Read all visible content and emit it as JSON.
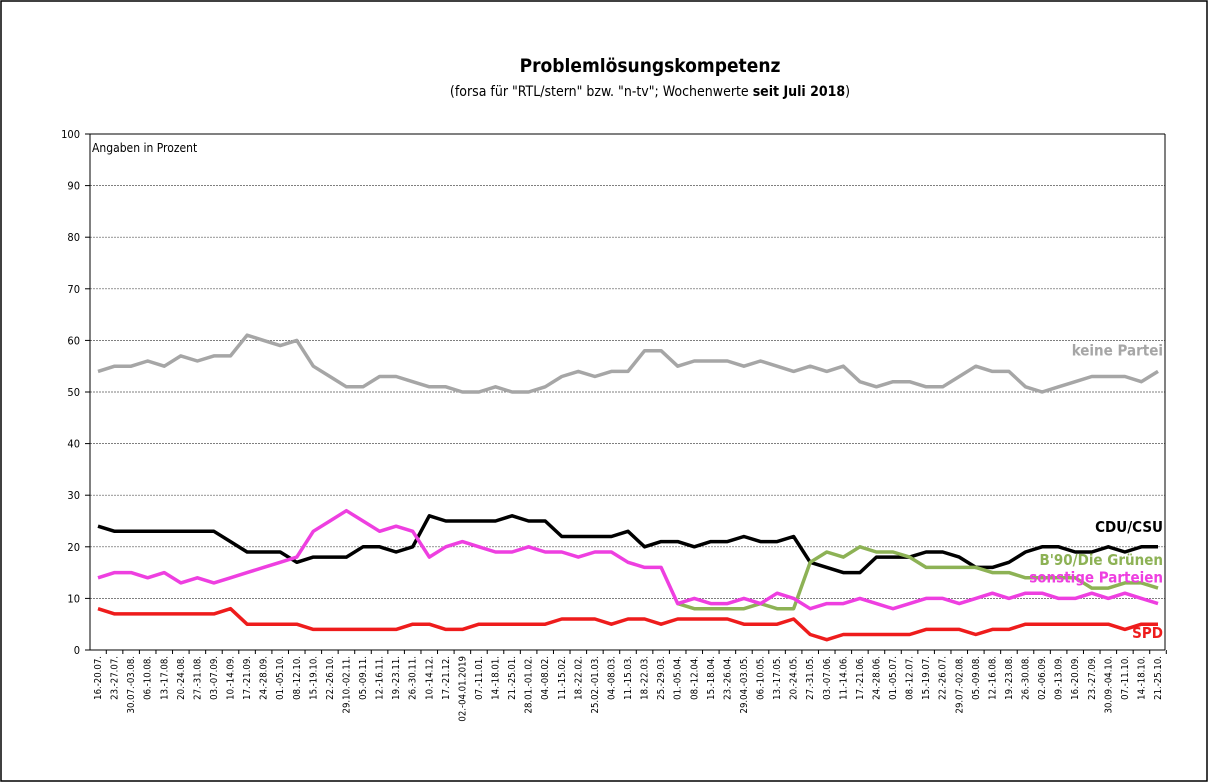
{
  "chart_data": {
    "type": "line",
    "title": "Problemlösungskompetenz",
    "subtitle": [
      "(forsa für \"RTL/stern\" bzw. \"n-tv\"; Wochenwerte ",
      "seit Juli 2018",
      ")"
    ],
    "annotation": "Angaben in Prozent",
    "categories": [
      "16.-20.07.",
      "23.-27.07.",
      "30.07.-03.08.",
      "06.-10.08.",
      "13.-17.08.",
      "20.-24.08.",
      "27.-31.08.",
      "03.-07.09.",
      "10.-14.09.",
      "17.-21.09.",
      "24.-28.09.",
      "01.-05.10.",
      "08.-12.10.",
      "15.-19.10.",
      "22.-26.10.",
      "29.10.-02.11.",
      "05.-09.11.",
      "12.-16.11.",
      "19.-23.11.",
      "26.-30.11.",
      "10.-14.12.",
      "17.-21.12.",
      "02.-04.01.2019",
      "07.-11.01.",
      "14.-18.01.",
      "21.-25.01.",
      "28.01.-01.02.",
      "04.-08.02.",
      "11.-15.02.",
      "18.-22.02.",
      "25.02.-01.03.",
      "04.-08.03.",
      "11.-15.03.",
      "18.-22.03.",
      "25.-29.03.",
      "01.-05.04.",
      "08.-12.04.",
      "15.-18.04.",
      "23.-26.04.",
      "29.04.-03.05.",
      "06.-10.05.",
      "13.-17.05.",
      "20.-24.05.",
      "27.-31.05.",
      "03.-07.06.",
      "11.-14.06.",
      "17.-21.06.",
      "24.-28.06.",
      "01.-05.07.",
      "08.-12.07.",
      "15.-19.07.",
      "22.-26.07.",
      "29.07.-02.08.",
      "05.-09.08.",
      "12.-16.08.",
      "19.-23.08.",
      "26.-30.08.",
      "02.-06.09.",
      "09.-13.09.",
      "16.-20.09.",
      "23.-27.09.",
      "30.09.-04.10.",
      "07.-11.10.",
      "14.-18.10.",
      "21.-25.10."
    ],
    "series": [
      {
        "name": "keine Partei",
        "color": "#a6a6a6",
        "values": [
          54,
          55,
          55,
          56,
          55,
          57,
          56,
          57,
          57,
          61,
          60,
          59,
          60,
          55,
          53,
          51,
          51,
          53,
          53,
          52,
          51,
          51,
          50,
          50,
          51,
          50,
          50,
          51,
          53,
          54,
          53,
          54,
          54,
          58,
          58,
          55,
          56,
          56,
          56,
          55,
          56,
          55,
          54,
          55,
          54,
          55,
          52,
          51,
          52,
          52,
          51,
          51,
          53,
          55,
          54,
          54,
          51,
          50,
          51,
          52,
          53,
          53,
          53,
          52,
          54
        ]
      },
      {
        "name": "CDU/CSU",
        "color": "#000000",
        "values": [
          24,
          23,
          23,
          23,
          23,
          23,
          23,
          23,
          21,
          19,
          19,
          19,
          17,
          18,
          18,
          18,
          20,
          20,
          19,
          20,
          26,
          25,
          25,
          25,
          25,
          26,
          25,
          25,
          22,
          22,
          22,
          22,
          23,
          20,
          21,
          21,
          20,
          21,
          21,
          22,
          21,
          21,
          22,
          17,
          16,
          15,
          15,
          18,
          18,
          18,
          19,
          19,
          18,
          16,
          16,
          17,
          19,
          20,
          20,
          19,
          19,
          20,
          19,
          20,
          20
        ]
      },
      {
        "name": "B'90/Die Grünen",
        "color": "#8db255",
        "values": [
          null,
          null,
          null,
          null,
          null,
          null,
          null,
          null,
          null,
          null,
          null,
          null,
          null,
          null,
          null,
          null,
          null,
          null,
          null,
          null,
          null,
          null,
          null,
          null,
          null,
          null,
          null,
          null,
          null,
          null,
          null,
          null,
          null,
          null,
          null,
          9,
          8,
          8,
          8,
          8,
          9,
          8,
          8,
          17,
          19,
          18,
          20,
          19,
          19,
          18,
          16,
          16,
          16,
          16,
          15,
          15,
          14,
          14,
          14,
          14,
          12,
          12,
          13,
          13,
          12
        ]
      },
      {
        "name": "sonstige Parteien",
        "color": "#ee3fe0",
        "values": [
          14,
          15,
          15,
          14,
          15,
          13,
          14,
          13,
          14,
          15,
          16,
          17,
          18,
          23,
          25,
          27,
          25,
          23,
          24,
          23,
          18,
          20,
          21,
          20,
          19,
          19,
          20,
          19,
          19,
          18,
          19,
          19,
          17,
          16,
          16,
          9,
          10,
          9,
          9,
          10,
          9,
          11,
          10,
          8,
          9,
          9,
          10,
          9,
          8,
          9,
          10,
          10,
          9,
          10,
          11,
          10,
          11,
          11,
          10,
          10,
          11,
          10,
          11,
          10,
          9
        ]
      },
      {
        "name": "SPD",
        "color": "#ee1c1c",
        "values": [
          8,
          7,
          7,
          7,
          7,
          7,
          7,
          7,
          8,
          5,
          5,
          5,
          5,
          4,
          4,
          4,
          4,
          4,
          4,
          5,
          5,
          4,
          4,
          5,
          5,
          5,
          5,
          5,
          6,
          6,
          6,
          5,
          6,
          6,
          5,
          6,
          6,
          6,
          6,
          5,
          5,
          5,
          6,
          3,
          2,
          3,
          3,
          3,
          3,
          3,
          4,
          4,
          4,
          3,
          4,
          4,
          5,
          5,
          5,
          5,
          5,
          5,
          4,
          5,
          5
        ]
      }
    ],
    "ylim": [
      0,
      100
    ],
    "yticks": [
      0,
      10,
      20,
      30,
      40,
      50,
      60,
      70,
      80,
      90,
      100
    ],
    "grid": true
  }
}
